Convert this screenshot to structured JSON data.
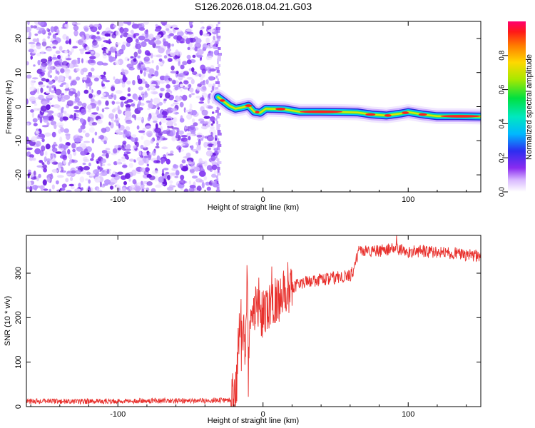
{
  "figure_title": "S126.2026.018.04.21.G03",
  "colors": {
    "snr_line": "#e8302c",
    "noise_purple": "#7a1cf0",
    "frame": "#000000"
  },
  "chart_data": [
    {
      "id": "spectrogram",
      "type": "heatmap",
      "xlabel": "Height of straight line (km)",
      "ylabel": "Frequency (Hz)",
      "xlim": [
        -163,
        150
      ],
      "ylim": [
        -25,
        25
      ],
      "x_ticks": [
        -100,
        0,
        100
      ],
      "x_tick_labels": [
        "-100",
        "0",
        "100"
      ],
      "y_ticks": [
        20,
        10,
        0,
        -10,
        -20
      ],
      "y_tick_labels": [
        "20",
        "10",
        "0",
        "-10",
        "-20"
      ],
      "noise_region_x": [
        -163,
        -32
      ],
      "signal_start_x": -32,
      "carrier_track": [
        {
          "x": -31,
          "f": 2.8
        },
        {
          "x": -27,
          "f": 1.5
        },
        {
          "x": -23,
          "f": 0.2
        },
        {
          "x": -19,
          "f": -0.6
        },
        {
          "x": -15,
          "f": -0.3
        },
        {
          "x": -10,
          "f": 0.3
        },
        {
          "x": -6,
          "f": -1.5
        },
        {
          "x": -2,
          "f": -1.8
        },
        {
          "x": 2,
          "f": -0.6
        },
        {
          "x": 8,
          "f": -0.7
        },
        {
          "x": 15,
          "f": -0.8
        },
        {
          "x": 25,
          "f": -1.5
        },
        {
          "x": 40,
          "f": -1.5
        },
        {
          "x": 55,
          "f": -1.6
        },
        {
          "x": 65,
          "f": -1.7
        },
        {
          "x": 75,
          "f": -2.3
        },
        {
          "x": 85,
          "f": -2.6
        },
        {
          "x": 95,
          "f": -2.0
        },
        {
          "x": 100,
          "f": -1.6
        },
        {
          "x": 110,
          "f": -2.3
        },
        {
          "x": 120,
          "f": -2.8
        },
        {
          "x": 135,
          "f": -2.8
        },
        {
          "x": 150,
          "f": -2.9
        }
      ]
    },
    {
      "id": "colorbar",
      "type": "colorbar",
      "label": "Normalized spectral amplitude",
      "range": [
        0,
        1
      ],
      "ticks": [
        0.0,
        0.2,
        0.4,
        0.6,
        0.8
      ],
      "tick_labels": [
        "0.0",
        "0.2",
        "0.4",
        "0.6",
        "0.8"
      ]
    },
    {
      "id": "snr",
      "type": "line",
      "xlabel": "Height of straight line (km)",
      "ylabel": "SNR (10 * v/v)",
      "xlim": [
        -163,
        150
      ],
      "ylim": [
        0,
        385
      ],
      "x_ticks": [
        -100,
        0,
        100
      ],
      "x_tick_labels": [
        "-100",
        "0",
        "100"
      ],
      "y_ticks": [
        0,
        100,
        200,
        300
      ],
      "y_tick_labels": [
        "0",
        "100",
        "200",
        "300"
      ],
      "series": [
        {
          "name": "SNR",
          "x": [
            -163,
            -120,
            -80,
            -50,
            -22,
            -18,
            -16,
            -12,
            -11,
            -10,
            -9,
            -5,
            0,
            5,
            10,
            18,
            25,
            30,
            40,
            50,
            60,
            62,
            64,
            66,
            70,
            80,
            90,
            100,
            110,
            120,
            130,
            140,
            150
          ],
          "y": [
            12,
            12,
            13,
            13,
            14,
            60,
            210,
            130,
            300,
            90,
            160,
            220,
            205,
            235,
            240,
            265,
            275,
            280,
            285,
            290,
            295,
            305,
            330,
            350,
            350,
            350,
            355,
            348,
            350,
            346,
            345,
            342,
            338
          ]
        }
      ],
      "spikes": [
        {
          "x": -15,
          "y": 80
        },
        {
          "x": -11,
          "y": 318
        },
        {
          "x": -10,
          "y": 22
        },
        {
          "x": -3,
          "y": 290
        },
        {
          "x": 6,
          "y": 315
        },
        {
          "x": 17,
          "y": 325
        },
        {
          "x": 92,
          "y": 385
        }
      ]
    }
  ]
}
